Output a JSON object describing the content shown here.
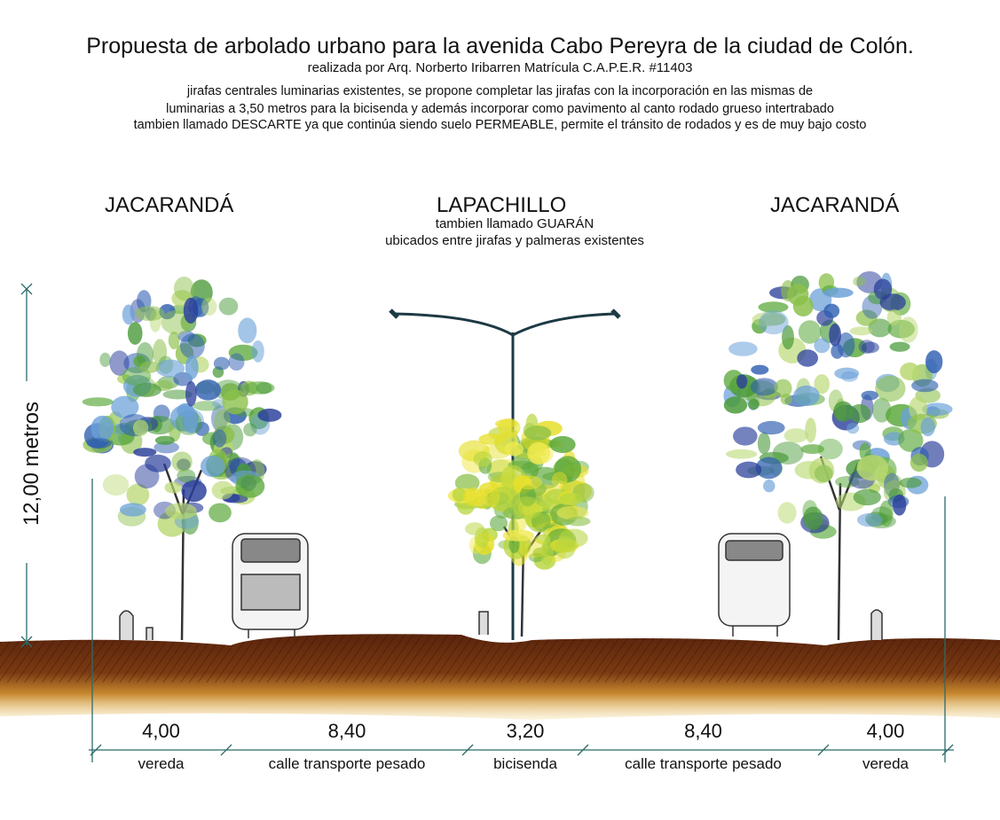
{
  "header": {
    "title": "Propuesta de arbolado urbano para la avenida Cabo Pereyra de la ciudad de Colón.",
    "author": "realizada por Arq. Norberto Iribarren Matrícula C.A.P.E.R. #11403",
    "description": [
      "jirafas centrales luminarias existentes, se propone completar las jirafas con la incorporación en las mismas de",
      "luminarias a 3,50 metros para la bicisenda y además incorporar como pavimento al canto rodado grueso intertrabado",
      "tambien llamado DESCARTE ya que continúa siendo suelo PERMEABLE, permite el tránsito de rodados y es de muy bajo costo"
    ]
  },
  "trees": {
    "left": "JACARANDÁ",
    "center": "LAPACHILLO",
    "center_sub1": "tambien llamado GUARÁN",
    "center_sub2": "ubicados entre jirafas y palmeras existentes",
    "right": "JACARANDÁ"
  },
  "height_label": "12,00 metros",
  "sections": [
    {
      "width": "4,00",
      "label": "vereda"
    },
    {
      "width": "8,40",
      "label": "calle transporte pesado"
    },
    {
      "width": "3,20",
      "label": "bicisenda"
    },
    {
      "width": "8,40",
      "label": "calle transporte pesado"
    },
    {
      "width": "4,00",
      "label": "vereda"
    }
  ],
  "colors": {
    "ground": "#6b2e10",
    "soil_light": "#d9a640",
    "jacaranda_blue": "#2f5fb0",
    "leaf_green": "#5aa83a",
    "lapachillo_yellow": "#e6df2a"
  }
}
